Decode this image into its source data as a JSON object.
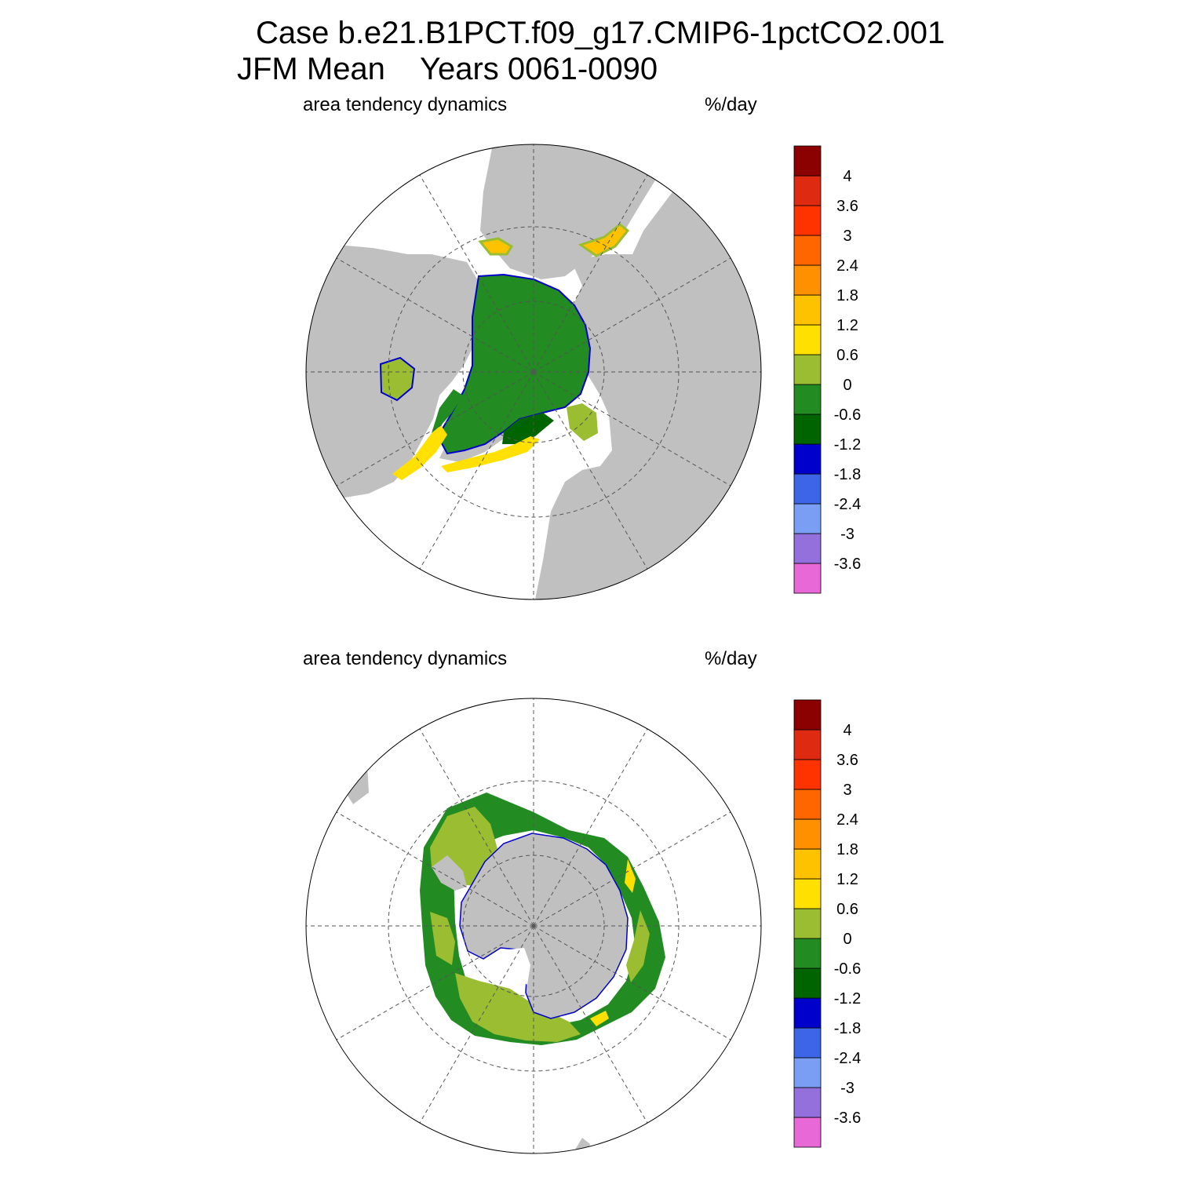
{
  "title": {
    "case": "Case b.e21.B1PCT.f09_g17.CMIP6-1pctCO2.001",
    "season": "JFM Mean",
    "years": "Years 0061-0090"
  },
  "colors": {
    "land": "#c0c0c0",
    "ocean": "#ffffff",
    "scale": [
      "#e868d8",
      "#9370db",
      "#7b9ef5",
      "#3d65e8",
      "#0000cd",
      "#006400",
      "#228b22",
      "#9abd32",
      "#ffe000",
      "#ffc200",
      "#ff9000",
      "#ff6600",
      "#ff3300",
      "#dd2a10",
      "#8b0000"
    ]
  },
  "colorbar": {
    "unit": "%/day",
    "labels": [
      "-3.6",
      "-3",
      "-2.4",
      "-1.8",
      "-1.2",
      "-0.6",
      "0",
      "0.6",
      "1.2",
      "1.8",
      "2.4",
      "3",
      "3.6",
      "4"
    ]
  },
  "panels": [
    {
      "id": "north",
      "hemisphere": "Northern Hemisphere",
      "variable": "area tendency dynamics",
      "unit": "%/day"
    },
    {
      "id": "south",
      "hemisphere": "Southern Hemisphere",
      "variable": "area tendency dynamics",
      "unit": "%/day"
    }
  ]
}
